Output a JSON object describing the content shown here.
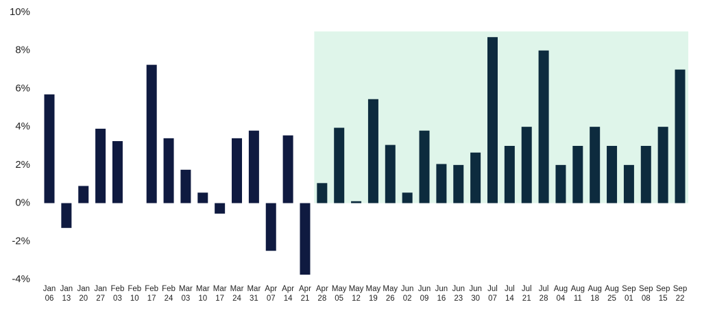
{
  "chart_data": {
    "type": "bar",
    "categories": [
      "Jan 06",
      "Jan 13",
      "Jan 20",
      "Jan 27",
      "Feb 03",
      "Feb 10",
      "Feb 17",
      "Feb 24",
      "Mar 03",
      "Mar 10",
      "Mar 17",
      "Mar 24",
      "Mar 31",
      "Apr 07",
      "Apr 14",
      "Apr 21",
      "Apr 28",
      "May 05",
      "May 12",
      "May 19",
      "May 26",
      "Jun 02",
      "Jun 09",
      "Jun 16",
      "Jun 23",
      "Jun 30",
      "Jul 07",
      "Jul 14",
      "Jul 21",
      "Jul 28",
      "Aug 04",
      "Aug 11",
      "Aug 18",
      "Aug 25",
      "Sep 01",
      "Sep 08",
      "Sep 15",
      "Sep 22"
    ],
    "values": [
      5.7,
      -1.3,
      0.9,
      3.9,
      3.25,
      0,
      7.25,
      3.4,
      1.75,
      0.55,
      -0.55,
      3.4,
      3.8,
      -2.5,
      3.55,
      -3.75,
      1.05,
      3.95,
      0.1,
      5.45,
      3.05,
      0.55,
      3.8,
      2.05,
      2.0,
      2.65,
      8.7,
      3.0,
      4.0,
      8.0,
      2.0,
      3.0,
      4.0,
      3.0,
      2.0,
      3.0,
      4.0,
      7.0
    ],
    "color": "#0f1a40",
    "highlight": {
      "start": 16,
      "color": "#0d2b3e",
      "background": "#dff5ea",
      "top": 9
    },
    "ylim": [
      -4,
      10
    ],
    "yticks": [
      {
        "value": -4,
        "label": "-4%"
      },
      {
        "value": -2,
        "label": "-2%"
      },
      {
        "value": 0,
        "label": "0%"
      },
      {
        "value": 2,
        "label": "2%"
      },
      {
        "value": 4,
        "label": "4%"
      },
      {
        "value": 6,
        "label": "6%"
      },
      {
        "value": 8,
        "label": "8%"
      },
      {
        "value": 10,
        "label": "10%"
      }
    ],
    "grid": false
  }
}
